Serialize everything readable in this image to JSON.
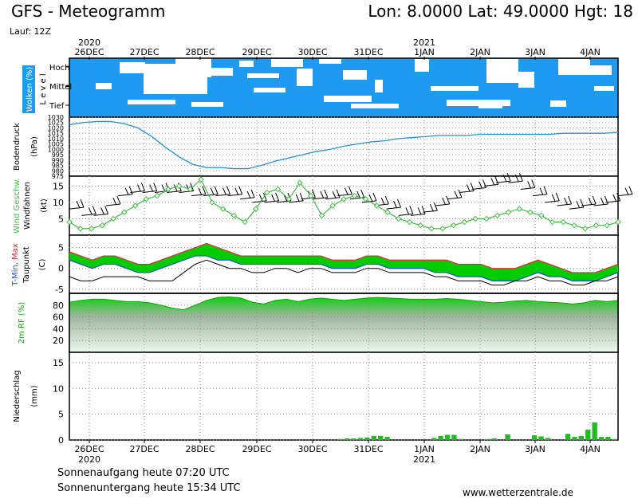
{
  "header": {
    "title": "GFS - Meteogramm",
    "coords": "Lon: 8.0000  Lat: 49.0000  Hgt: 18",
    "run": "Lauf: 12Z"
  },
  "footer": {
    "sunrise": "Sonnenaufgang heute 07:20 UTC",
    "sunset": "Sonnenuntergang heute 15:34 UTC",
    "site": "www.wetterzentrale.de"
  },
  "colors": {
    "cloud": "#1e9bf0",
    "dewpoint": "#000000",
    "tmin": "#2050e0",
    "tmax": "#e03030",
    "temp_fill": "#00cc00",
    "rh_fill": "#22cc22",
    "wind_speed": "#44bb44",
    "pressure": "#2a8fd4",
    "precip": "#22bb22"
  },
  "chart_data": {
    "type": "line",
    "x_day_labels_top": [
      "26DEC",
      "27DEC",
      "28DEC",
      "29DEC",
      "30DEC",
      "31DEC",
      "1JAN",
      "2JAN",
      "3JAN",
      "4JAN"
    ],
    "x_day_labels_bottom": [
      "26DEC",
      "27DEC",
      "28DEC",
      "29DEC",
      "30DEC",
      "31DEC",
      "1JAN",
      "2JAN",
      "3JAN",
      "4JAN"
    ],
    "year_labels_top": [
      {
        "day_index": 0,
        "text": "2020"
      },
      {
        "day_index": 6,
        "text": "2021"
      }
    ],
    "year_labels_bottom": [
      {
        "day_index": 0,
        "text": "2020"
      },
      {
        "day_index": 6,
        "text": "2021"
      }
    ],
    "clouds": {
      "ylabel": "Wolken (%)",
      "side_label": "L e v e l",
      "levels": [
        "Hoch",
        "Mittel",
        "Tief"
      ]
    },
    "pressure": {
      "ylabel": "Bodendruck",
      "unit": "(hPa)",
      "ticks": [
        1030,
        1025,
        1020,
        1015,
        1010,
        1005,
        1000,
        995,
        990,
        985,
        980,
        975
      ],
      "ylim": [
        975,
        1030
      ],
      "values": [
        1023,
        1025,
        1026,
        1026,
        1024,
        1020,
        1012,
        1002,
        993,
        986,
        983,
        983,
        982,
        982,
        985,
        989,
        992,
        995,
        998,
        1000,
        1003,
        1005,
        1007,
        1008,
        1010,
        1011,
        1012,
        1013,
        1013,
        1013,
        1014,
        1014,
        1014,
        1014,
        1014,
        1014,
        1015,
        1015,
        1015,
        1015,
        1016
      ]
    },
    "wind": {
      "ylabel": "Wind Geschw.",
      "ylabel2": "Windfahnen",
      "unit": "(kt)",
      "ticks": [
        15,
        10,
        5
      ],
      "ylim": [
        0,
        18
      ],
      "speed": [
        4,
        2,
        2,
        3,
        5,
        7,
        9,
        11,
        12,
        14,
        15,
        14,
        17,
        10,
        8,
        6,
        4,
        8,
        13,
        14,
        11,
        16,
        12,
        6,
        9,
        11,
        12,
        11,
        9,
        7,
        5,
        4,
        3,
        2,
        2,
        3,
        4,
        5,
        5,
        6,
        7,
        8,
        7,
        6,
        4,
        4,
        3,
        2,
        3,
        3,
        4
      ],
      "barbs": [
        8,
        6,
        6,
        9,
        12,
        13,
        13,
        13,
        13,
        13,
        12,
        12,
        12,
        12,
        11,
        10,
        10,
        10,
        10,
        11,
        11,
        11,
        12,
        11,
        10,
        9,
        8,
        6,
        6,
        7,
        9,
        11,
        13,
        14,
        15,
        16,
        16,
        14,
        12,
        10,
        9,
        8,
        9,
        9,
        10,
        12
      ]
    },
    "temperature": {
      "ylabel_parts": [
        "T-Min, ",
        "Max"
      ],
      "ylabel2": "Taupunkt",
      "unit": "(C)",
      "ticks": [
        5,
        0,
        -5
      ],
      "ylim": [
        -6,
        8
      ],
      "tmax": [
        4,
        3,
        2,
        3,
        3,
        2,
        1,
        1,
        2,
        3,
        4,
        5,
        6,
        5,
        4,
        3,
        3,
        3,
        3,
        3,
        3,
        3,
        3,
        2,
        2,
        2,
        3,
        3,
        2,
        2,
        2,
        2,
        2,
        2,
        1,
        1,
        1,
        0,
        0,
        0,
        1,
        2,
        1,
        0,
        -1,
        -1,
        -1,
        0,
        1
      ],
      "tmin": [
        2,
        1,
        0,
        1,
        1,
        0,
        -1,
        -1,
        0,
        1,
        2,
        3,
        3,
        2,
        2,
        1,
        1,
        1,
        1,
        1,
        1,
        1,
        1,
        0,
        0,
        0,
        1,
        1,
        0,
        0,
        0,
        0,
        -1,
        -1,
        -2,
        -2,
        -2,
        -3,
        -3,
        -3,
        -2,
        -1,
        -2,
        -2,
        -3,
        -3,
        -3,
        -2,
        -1
      ],
      "dewpoint": [
        -2,
        -3,
        -3,
        -2,
        -2,
        -2,
        -2,
        -3,
        -3,
        -3,
        -1,
        1,
        2,
        1,
        0,
        0,
        -1,
        -1,
        0,
        0,
        -1,
        0,
        0,
        -1,
        -1,
        -1,
        0,
        0,
        -1,
        -1,
        -1,
        -1,
        -2,
        -2,
        -3,
        -3,
        -3,
        -4,
        -4,
        -3,
        -3,
        -2,
        -3,
        -3,
        -4,
        -4,
        -3,
        -3,
        -2
      ]
    },
    "humidity": {
      "ylabel": "2m RF (%)",
      "ticks": [
        80,
        60,
        40,
        20
      ],
      "ylim": [
        0,
        100
      ],
      "values": [
        85,
        88,
        90,
        90,
        88,
        86,
        86,
        84,
        80,
        75,
        72,
        80,
        88,
        93,
        94,
        92,
        85,
        82,
        88,
        90,
        86,
        90,
        92,
        90,
        88,
        90,
        92,
        93,
        92,
        91,
        90,
        90,
        90,
        91,
        90,
        88,
        86,
        84,
        85,
        87,
        88,
        86,
        85,
        84,
        82,
        84,
        88,
        86,
        88
      ]
    },
    "precip": {
      "ylabel": "Niederschlag",
      "unit": "(mm)",
      "ticks": [
        15,
        10,
        5,
        0
      ],
      "ylim": [
        0,
        17
      ],
      "values": [
        0,
        0,
        0,
        0,
        0,
        0,
        0,
        0,
        0,
        0,
        0,
        0,
        0,
        0,
        0,
        0,
        0,
        0,
        0,
        0,
        0,
        0,
        0,
        0,
        0,
        0,
        0,
        0,
        0,
        0,
        0,
        0,
        0,
        0,
        0,
        0,
        0,
        0,
        0,
        0,
        0.2,
        0.3,
        0.3,
        0.4,
        0.5,
        0.8,
        0.8,
        0.6,
        0,
        0,
        0,
        0,
        0,
        0,
        0.4,
        0.8,
        1.0,
        1.0,
        0.2,
        0,
        0,
        0,
        0.2,
        0.3,
        0,
        1.1,
        0,
        0,
        0,
        0.9,
        0.7,
        0.4,
        0,
        0,
        1.2,
        0.6,
        0.8,
        2.0,
        3.4,
        0.6,
        0.6,
        0.2
      ]
    }
  }
}
